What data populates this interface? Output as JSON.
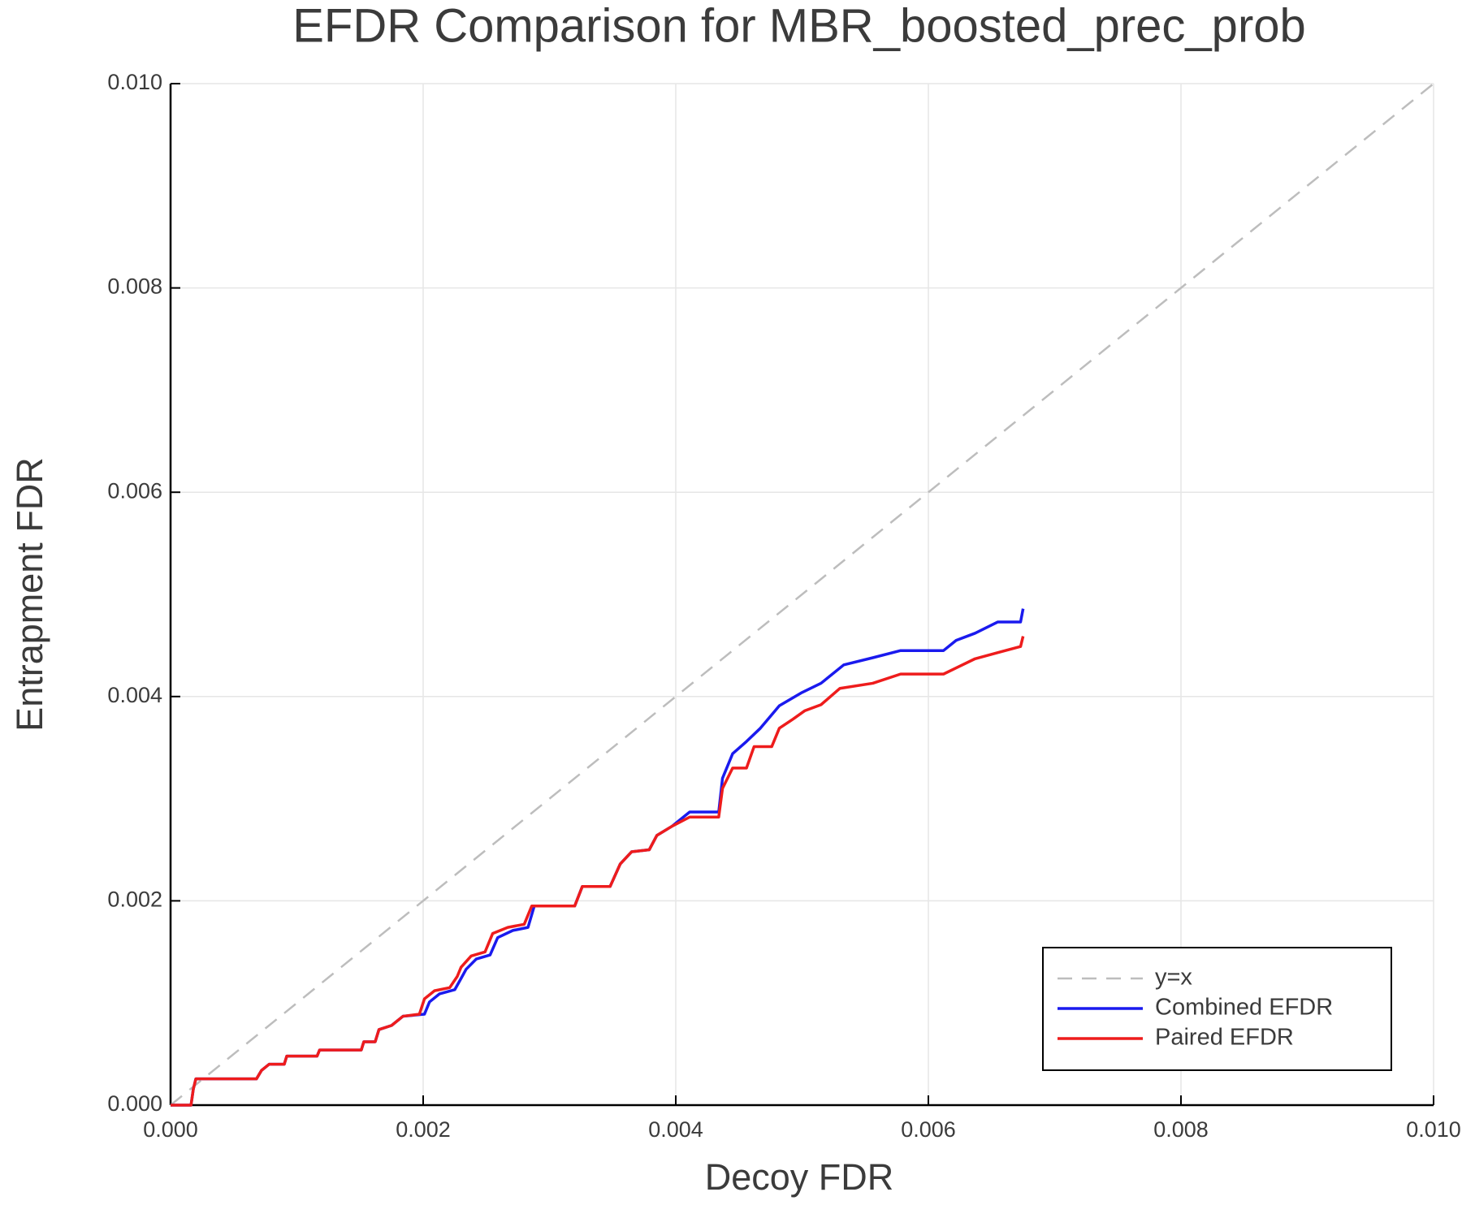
{
  "chart_data": {
    "type": "line",
    "title": "EFDR Comparison for MBR_boosted_prec_prob",
    "x_label": "Decoy FDR",
    "y_label": "Entrapment FDR",
    "xlim": [
      0,
      0.01
    ],
    "ylim": [
      0,
      0.01
    ],
    "xticks": [
      {
        "value": 0,
        "label": "0.000"
      },
      {
        "value": 0.002,
        "label": "0.002"
      },
      {
        "value": 0.004,
        "label": "0.004"
      },
      {
        "value": 0.006,
        "label": "0.006"
      },
      {
        "value": 0.008,
        "label": "0.008"
      },
      {
        "value": 0.01,
        "label": "0.010"
      }
    ],
    "yticks": [
      {
        "value": 0,
        "label": "0.000"
      },
      {
        "value": 0.002,
        "label": "0.002"
      },
      {
        "value": 0.004,
        "label": "0.004"
      },
      {
        "value": 0.006,
        "label": "0.006"
      },
      {
        "value": 0.008,
        "label": "0.008"
      },
      {
        "value": 0.01,
        "label": "0.010"
      }
    ],
    "grid": true,
    "legend": "bottom right",
    "series": [
      {
        "name": "y=x",
        "color": "#bdbdbd",
        "dashed": true,
        "x": [
          0,
          0.01
        ],
        "values": [
          0,
          0.01
        ]
      },
      {
        "name": "Combined EFDR",
        "color": "#1a1aee",
        "dashed": false,
        "x": [
          0,
          0.000162,
          0.00018,
          0.0002,
          0.00068,
          0.00072,
          0.00078,
          0.0009,
          0.00092,
          0.00116,
          0.00118,
          0.00151,
          0.00153,
          0.00162,
          0.00165,
          0.00175,
          0.00184,
          0.00201,
          0.00205,
          0.00213,
          0.00225,
          0.0023,
          0.00234,
          0.00242,
          0.00253,
          0.00259,
          0.00271,
          0.00283,
          0.00288,
          0.0032,
          0.00326,
          0.00348,
          0.00356,
          0.00365,
          0.00379,
          0.00385,
          0.00397,
          0.00411,
          0.00434,
          0.00437,
          0.00445,
          0.00456,
          0.00467,
          0.00482,
          0.005,
          0.00515,
          0.00533,
          0.00556,
          0.00578,
          0.00612,
          0.00622,
          0.00637,
          0.00655,
          0.00673,
          0.00675
        ],
        "values": [
          0,
          0,
          0.000156,
          0.000257,
          0.000257,
          0.00034,
          0.0004,
          0.0004,
          0.00048,
          0.00048,
          0.00054,
          0.00054,
          0.00062,
          0.00062,
          0.00074,
          0.00078,
          0.00087,
          0.00089,
          0.00101,
          0.00109,
          0.00113,
          0.00124,
          0.00133,
          0.00143,
          0.00147,
          0.00164,
          0.00171,
          0.00174,
          0.00195,
          0.00195,
          0.00214,
          0.00214,
          0.00236,
          0.00248,
          0.0025,
          0.00264,
          0.00273,
          0.00287,
          0.00287,
          0.0032,
          0.00344,
          0.00356,
          0.00369,
          0.00391,
          0.00404,
          0.00413,
          0.00431,
          0.00438,
          0.00445,
          0.00445,
          0.00455,
          0.00462,
          0.00473,
          0.00473,
          0.00486
        ]
      },
      {
        "name": "Paired EFDR",
        "color": "#ee1c1c",
        "dashed": false,
        "x": [
          0,
          0.000162,
          0.00018,
          0.0002,
          0.00068,
          0.00072,
          0.00078,
          0.0009,
          0.00092,
          0.00116,
          0.00118,
          0.00151,
          0.00153,
          0.00162,
          0.00165,
          0.00175,
          0.00184,
          0.00197,
          0.00201,
          0.00209,
          0.00221,
          0.00227,
          0.0023,
          0.00238,
          0.00249,
          0.00255,
          0.00267,
          0.0028,
          0.00286,
          0.0032,
          0.00326,
          0.00348,
          0.00356,
          0.00365,
          0.00379,
          0.00385,
          0.00397,
          0.00411,
          0.00434,
          0.00437,
          0.00445,
          0.00456,
          0.00462,
          0.00476,
          0.00482,
          0.00493,
          0.00502,
          0.00515,
          0.0053,
          0.00556,
          0.00578,
          0.00612,
          0.00622,
          0.00637,
          0.00655,
          0.00673,
          0.00675
        ],
        "values": [
          0,
          0,
          0.000156,
          0.000257,
          0.000257,
          0.00034,
          0.0004,
          0.0004,
          0.00048,
          0.00048,
          0.00054,
          0.00054,
          0.00062,
          0.00062,
          0.00074,
          0.00078,
          0.00087,
          0.00089,
          0.00104,
          0.00112,
          0.00115,
          0.00126,
          0.00135,
          0.00146,
          0.0015,
          0.00168,
          0.00174,
          0.00177,
          0.00195,
          0.00195,
          0.00214,
          0.00214,
          0.00236,
          0.00248,
          0.0025,
          0.00264,
          0.00273,
          0.00282,
          0.00282,
          0.0031,
          0.0033,
          0.0033,
          0.00351,
          0.00351,
          0.00369,
          0.00378,
          0.00386,
          0.00392,
          0.00408,
          0.00413,
          0.00422,
          0.00422,
          0.00428,
          0.00437,
          0.00443,
          0.00449,
          0.00459
        ]
      }
    ]
  }
}
